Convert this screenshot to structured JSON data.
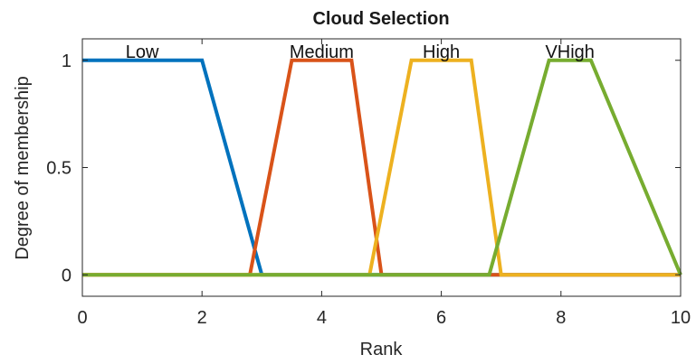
{
  "chart_data": {
    "type": "line",
    "title": "Cloud Selection",
    "xlabel": "Rank",
    "ylabel": "Degree of membership",
    "xlim": [
      0,
      10
    ],
    "ylim": [
      -0.1,
      1.1
    ],
    "xticks": [
      0,
      2,
      4,
      6,
      8,
      10
    ],
    "xtick_labels": [
      "0",
      "2",
      "4",
      "6",
      "8",
      "10"
    ],
    "yticks": [
      0,
      0.5,
      1
    ],
    "ytick_labels": [
      "0",
      "0.5",
      "1"
    ],
    "grid": false,
    "series": [
      {
        "name": "Low",
        "color": "#0072BD",
        "x": [
          0,
          2,
          3,
          10
        ],
        "y": [
          1,
          1,
          0,
          0
        ],
        "label_pos": [
          1,
          1
        ]
      },
      {
        "name": "Medium",
        "color": "#D95319",
        "x": [
          0,
          2.8,
          3.5,
          4.5,
          5,
          10
        ],
        "y": [
          0,
          0,
          1,
          1,
          0,
          0
        ],
        "label_pos": [
          4,
          1
        ]
      },
      {
        "name": "High",
        "color": "#EDB120",
        "x": [
          0,
          4.8,
          5.5,
          6.5,
          7,
          10
        ],
        "y": [
          0,
          0,
          1,
          1,
          0,
          0
        ],
        "label_pos": [
          6,
          1
        ]
      },
      {
        "name": "VHigh",
        "color": "#77AC30",
        "x": [
          0,
          6.8,
          7.8,
          8.5,
          10
        ],
        "y": [
          0,
          0,
          1,
          1,
          0
        ],
        "label_pos": [
          8.15,
          1
        ]
      }
    ]
  }
}
